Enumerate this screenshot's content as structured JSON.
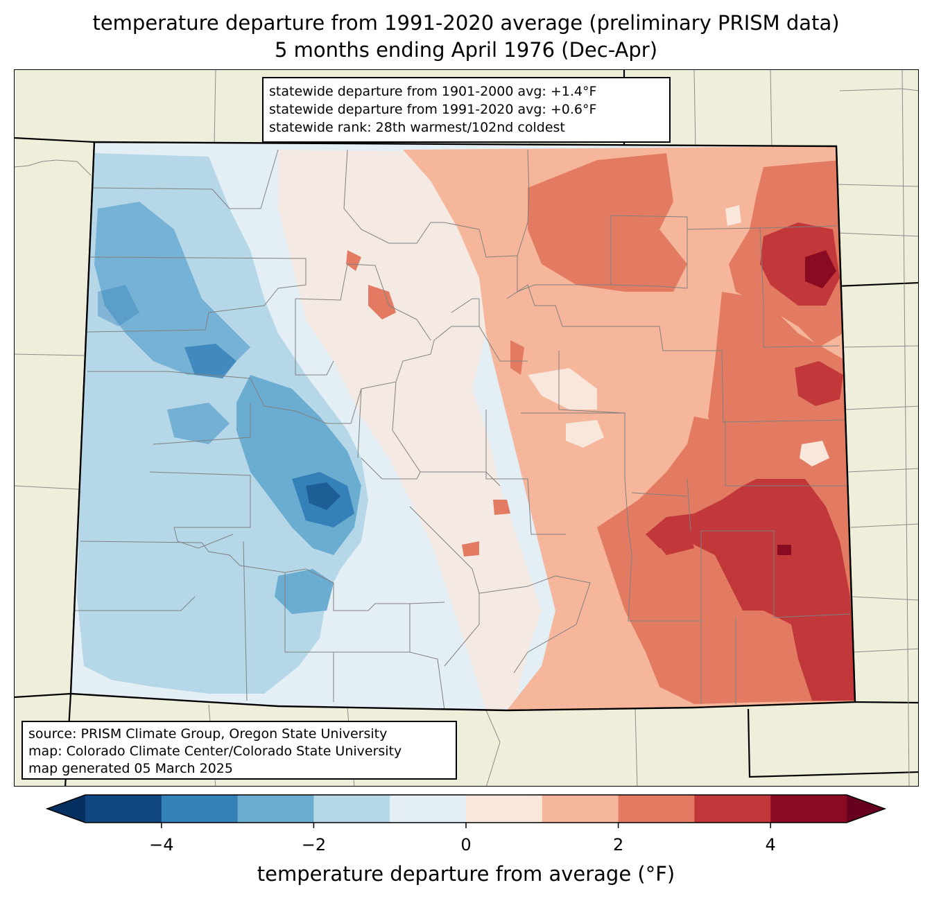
{
  "title": {
    "line1": "temperature departure from 1991-2020 average (preliminary PRISM data)",
    "line2": "5 months ending April 1976 (Dec-Apr)"
  },
  "stats": {
    "line1": "statewide departure from 1901-2000 avg: +1.4°F",
    "line2": "statewide departure from 1991-2020 avg: +0.6°F",
    "line3": "statewide rank: 28th warmest/102nd coldest"
  },
  "source": {
    "line1": "source: PRISM Climate Group, Oregon State University",
    "line2": "map: Colorado Climate Center/Colorado State University",
    "line3": "map generated 05 March 2025"
  },
  "colorbar": {
    "label": "temperature departure from average (°F)",
    "levels": [
      -5,
      -4,
      -3,
      -2,
      -1,
      0,
      1,
      2,
      3,
      4,
      5
    ],
    "colors": [
      "#114781",
      "#3480b9",
      "#6bacd1",
      "#b5d7e8",
      "#e4eef5",
      "#fae7dc",
      "#f6b69b",
      "#e27b62",
      "#c1373a",
      "#890b22"
    ],
    "under_color": "#053061",
    "over_color": "#67001f",
    "ticks": [
      {
        "value": -4,
        "label": "−4"
      },
      {
        "value": -2,
        "label": "−2"
      },
      {
        "value": 0,
        "label": "0"
      },
      {
        "value": 2,
        "label": "2"
      },
      {
        "value": 4,
        "label": "4"
      }
    ]
  },
  "map": {
    "background_color": "#efeedb",
    "state_border_color": "#000000",
    "county_line_color": "#808080"
  }
}
